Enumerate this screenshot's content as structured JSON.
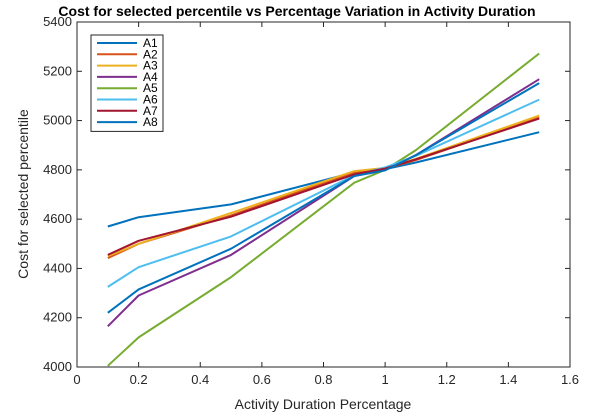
{
  "chart_data": {
    "type": "line",
    "title": "Cost for selected percentile vs Percentage Variation in Activity Duration",
    "xlabel": "Activity Duration Percentage",
    "ylabel": "Cost for selected percentile",
    "xlim": [
      0,
      1.6
    ],
    "ylim": [
      4000,
      5400
    ],
    "xticks": [
      "0",
      "0.2",
      "0.4",
      "0.6",
      "0.8",
      "1",
      "1.2",
      "1.4",
      "1.6"
    ],
    "yticks": [
      "4000",
      "4200",
      "4400",
      "4600",
      "4800",
      "5000",
      "5200",
      "5400"
    ],
    "grid": false,
    "legend_position": "top-left",
    "x": [
      0.1,
      0.2,
      0.5,
      0.9,
      1.0,
      1.1,
      1.5
    ],
    "series": [
      {
        "name": "A1",
        "color": "#0072BD",
        "values": [
          4570,
          4608,
          4660,
          4790,
          4803,
          4830,
          4953
        ]
      },
      {
        "name": "A2",
        "color": "#D95319",
        "values": [
          4442,
          4500,
          4615,
          4790,
          4805,
          4840,
          5012
        ]
      },
      {
        "name": "A3",
        "color": "#EDB120",
        "values": [
          4450,
          4500,
          4625,
          4795,
          4808,
          4845,
          5020
        ]
      },
      {
        "name": "A4",
        "color": "#7E2F8E",
        "values": [
          4165,
          4290,
          4455,
          4775,
          4800,
          4860,
          5168
        ]
      },
      {
        "name": "A5",
        "color": "#77AC30",
        "values": [
          4005,
          4120,
          4365,
          4748,
          4800,
          4880,
          5272
        ]
      },
      {
        "name": "A6",
        "color": "#4DBEEE",
        "values": [
          4325,
          4405,
          4530,
          4778,
          4810,
          4857,
          5085
        ]
      },
      {
        "name": "A7",
        "color": "#A2142F",
        "values": [
          4455,
          4512,
          4610,
          4782,
          4805,
          4843,
          5008
        ]
      },
      {
        "name": "A8",
        "color": "#0072BD",
        "values": [
          4220,
          4315,
          4480,
          4775,
          4798,
          4860,
          5152
        ]
      }
    ]
  }
}
